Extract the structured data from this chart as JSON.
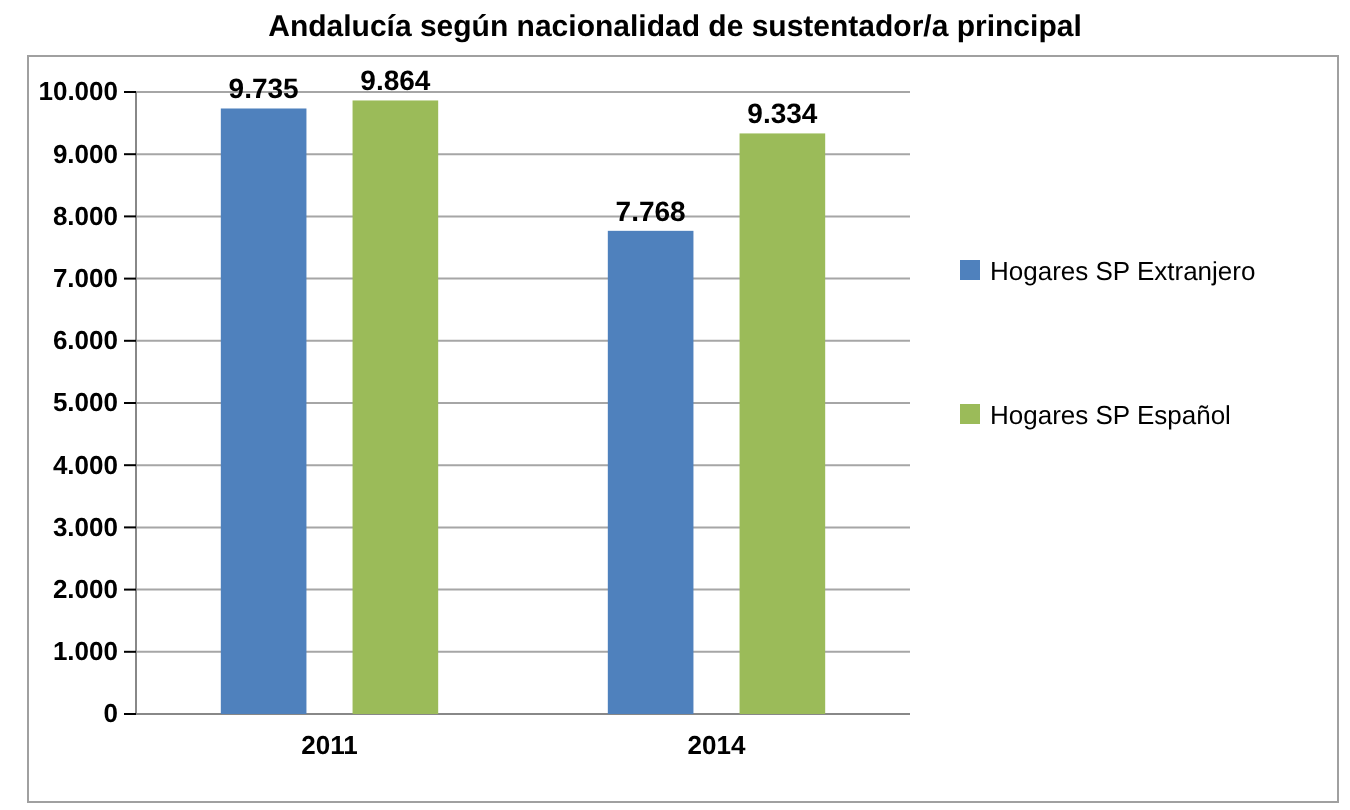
{
  "chart_data": {
    "type": "bar",
    "title": "Andalucía según nacionalidad de sustentador/a principal",
    "categories": [
      "2011",
      "2014"
    ],
    "series": [
      {
        "name": "Hogares SP Extranjero",
        "color": "#4f81bd",
        "values": [
          9735,
          7768
        ],
        "value_labels": [
          "9.735",
          "7.768"
        ]
      },
      {
        "name": "Hogares SP Español",
        "color": "#9bbb59",
        "values": [
          9864,
          9334
        ],
        "value_labels": [
          "9.864",
          "9.334"
        ]
      }
    ],
    "ylim": [
      0,
      10000
    ],
    "yticks": [
      {
        "value": 0,
        "label": "0"
      },
      {
        "value": 1000,
        "label": "1.000"
      },
      {
        "value": 2000,
        "label": "2.000"
      },
      {
        "value": 3000,
        "label": "3.000"
      },
      {
        "value": 4000,
        "label": "4.000"
      },
      {
        "value": 5000,
        "label": "5.000"
      },
      {
        "value": 6000,
        "label": "6.000"
      },
      {
        "value": 7000,
        "label": "7.000"
      },
      {
        "value": 8000,
        "label": "8.000"
      },
      {
        "value": 9000,
        "label": "9.000"
      },
      {
        "value": 10000,
        "label": "10.000"
      }
    ],
    "grid": "y",
    "legend": "right"
  }
}
